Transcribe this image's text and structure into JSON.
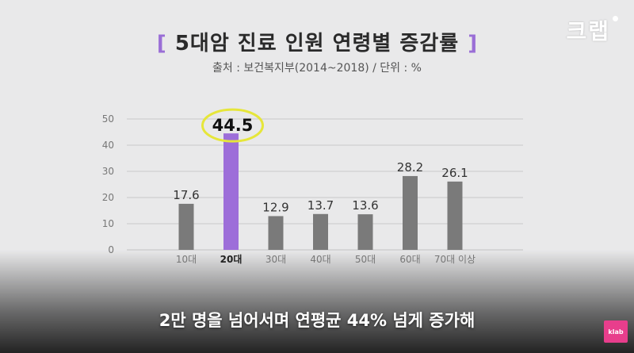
{
  "header": {
    "title_open": "[",
    "title": "5대암 진료 인원 연령별 증감률",
    "title_close": "]",
    "subtitle": "출처 : 보건복지부(2014~2018) / 단위 : %",
    "brand": "크랩"
  },
  "caption": "2만 명을 넘어서며 연평균 44% 넘게 증가해",
  "watermark": "klab",
  "colors": {
    "bar": "#7a7a7a",
    "highlight_bar": "#9d6ed9",
    "highlight_circle": "#e6e63a",
    "grid": "#c9c9c9"
  },
  "chart_data": {
    "type": "bar",
    "categories": [
      "10대",
      "20대",
      "30대",
      "40대",
      "50대",
      "60대",
      "70대 이상"
    ],
    "values": [
      17.6,
      44.5,
      12.9,
      13.7,
      13.6,
      28.2,
      26.1
    ],
    "value_labels": [
      "17.6",
      "44.5",
      "12.9",
      "13.7",
      "13.6",
      "28.2",
      "26.1"
    ],
    "highlight_index": 1,
    "ylim": [
      0,
      50
    ],
    "yticks": [
      "0",
      "10",
      "20",
      "30",
      "40",
      "50"
    ],
    "grid": true,
    "legend": "none"
  }
}
